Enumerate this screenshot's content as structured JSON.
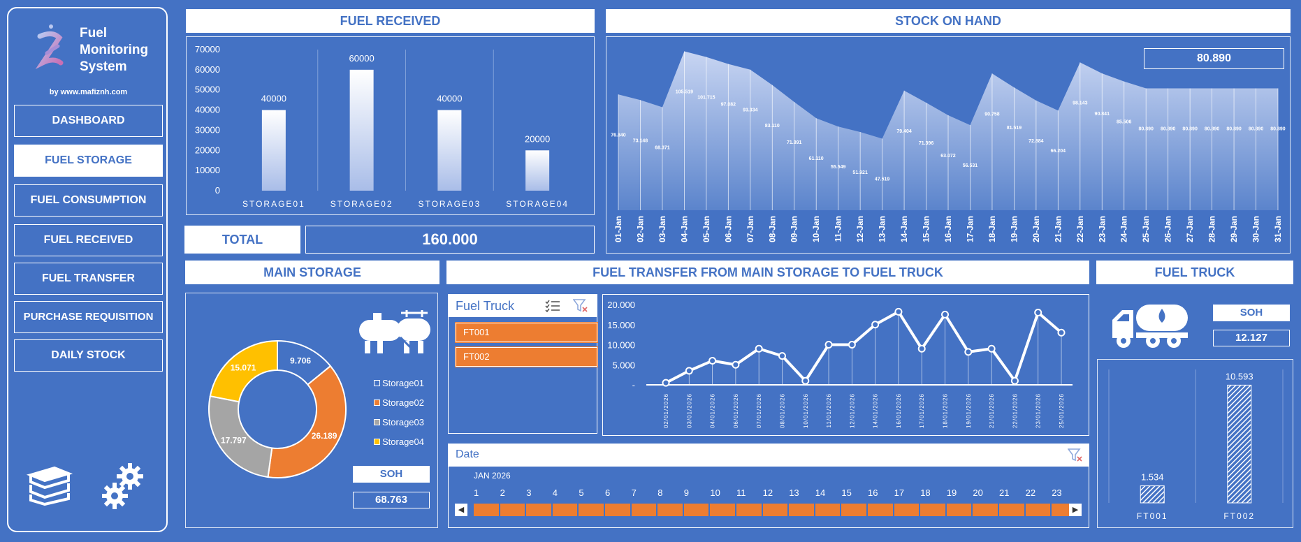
{
  "sidebar": {
    "app_title_line1": "Fuel",
    "app_title_line2": "Monitoring",
    "app_title_line3": "System",
    "byline": "by www.mafiznh.com",
    "items": [
      {
        "label": "DASHBOARD"
      },
      {
        "label": "FUEL STORAGE",
        "active": true
      },
      {
        "label": "FUEL CONSUMPTION"
      },
      {
        "label": "FUEL RECEIVED"
      },
      {
        "label": "FUEL TRANSFER"
      },
      {
        "label": "PURCHASE REQUISITION"
      },
      {
        "label": "DAILY STOCK"
      }
    ]
  },
  "fuel_received": {
    "title": "FUEL RECEIVED",
    "total_label": "TOTAL",
    "total_value": "160.000"
  },
  "stock_on_hand": {
    "title": "STOCK ON HAND",
    "current_value": "80.890"
  },
  "main_storage": {
    "title": "MAIN STORAGE",
    "soh_label": "SOH",
    "soh_value": "68.763"
  },
  "fuel_transfer": {
    "title": "FUEL TRANSFER FROM MAIN STORAGE TO FUEL TRUCK",
    "truck_slicer_title": "Fuel Truck",
    "truck_options": [
      "FT001",
      "FT002"
    ],
    "date_slicer_title": "Date",
    "date_month": "JAN 2026",
    "date_days": [
      "1",
      "2",
      "3",
      "4",
      "5",
      "6",
      "7",
      "8",
      "9",
      "10",
      "11",
      "12",
      "13",
      "14",
      "15",
      "16",
      "17",
      "18",
      "19",
      "20",
      "21",
      "22",
      "23"
    ]
  },
  "fuel_truck": {
    "title": "FUEL TRUCK",
    "soh_label": "SOH",
    "soh_value": "12.127"
  },
  "colors": {
    "background": "#4472C4",
    "orange": "#ED7D31",
    "yellow": "#FFC000",
    "gray": "#A5A5A5"
  },
  "chart_data": [
    {
      "id": "fuel_received",
      "type": "bar",
      "categories": [
        "STORAGE01",
        "STORAGE02",
        "STORAGE03",
        "STORAGE04"
      ],
      "values": [
        40000,
        60000,
        40000,
        20000
      ],
      "data_labels": [
        "40000",
        "60000",
        "40000",
        "20000"
      ],
      "ylim": [
        0,
        70000
      ],
      "yticks": [
        "0",
        "10000",
        "20000",
        "30000",
        "40000",
        "50000",
        "60000",
        "70000"
      ]
    },
    {
      "id": "stock_on_hand",
      "type": "area",
      "categories": [
        "01-Jan",
        "02-Jan",
        "03-Jan",
        "04-Jan",
        "05-Jan",
        "06-Jan",
        "07-Jan",
        "08-Jan",
        "09-Jan",
        "10-Jan",
        "11-Jan",
        "12-Jan",
        "13-Jan",
        "14-Jan",
        "15-Jan",
        "16-Jan",
        "17-Jan",
        "18-Jan",
        "19-Jan",
        "20-Jan",
        "21-Jan",
        "22-Jan",
        "23-Jan",
        "24-Jan",
        "25-Jan",
        "26-Jan",
        "27-Jan",
        "28-Jan",
        "29-Jan",
        "30-Jan",
        "31-Jan"
      ],
      "values": [
        76840,
        73148,
        68371,
        105519,
        101715,
        97082,
        93334,
        83110,
        71891,
        61110,
        55549,
        51921,
        47519,
        79404,
        71396,
        63072,
        56531,
        90758,
        81519,
        72884,
        66204,
        98143,
        90841,
        85506,
        80890,
        80890,
        80890,
        80890,
        80890,
        80890,
        80890
      ],
      "data_labels": [
        "76.840",
        "73.148",
        "68.371",
        "105.519",
        "101.715",
        "97.082",
        "93.334",
        "83.110",
        "71.891",
        "61.110",
        "55.549",
        "51.921",
        "47.519",
        "79.404",
        "71.396",
        "63.072",
        "56.531",
        "90.758",
        "81.519",
        "72.884",
        "66.204",
        "98.143",
        "90.841",
        "85.506",
        "80.890",
        "80.890",
        "80.890",
        "80.890",
        "80.890",
        "80.890",
        "80.890"
      ],
      "ylim": [
        0,
        115000
      ]
    },
    {
      "id": "main_storage",
      "type": "pie",
      "categories": [
        "Storage01",
        "Storage02",
        "Storage03",
        "Storage04"
      ],
      "values": [
        9706,
        26189,
        17797,
        15071
      ],
      "data_labels": [
        "9.706",
        "26.189",
        "17.797",
        "15.071"
      ],
      "colors": [
        "#4472C4",
        "#ED7D31",
        "#A5A5A5",
        "#FFC000"
      ]
    },
    {
      "id": "fuel_transfer",
      "type": "line",
      "categories": [
        "02/01/2026",
        "03/01/2026",
        "04/01/2026",
        "06/01/2026",
        "07/01/2026",
        "08/01/2026",
        "10/01/2026",
        "11/01/2026",
        "12/01/2026",
        "14/01/2026",
        "16/01/2026",
        "17/01/2026",
        "18/01/2026",
        "19/01/2026",
        "21/01/2026",
        "22/01/2026",
        "23/01/2026",
        "25/01/2026"
      ],
      "values": [
        500,
        3500,
        6000,
        5000,
        9000,
        7200,
        1000,
        10000,
        10000,
        15000,
        18200,
        9000,
        17500,
        8200,
        9000,
        1000,
        18000,
        13000
      ],
      "ylim": [
        0,
        20000
      ],
      "yticks": [
        "-",
        "5.000",
        "10.000",
        "15.000",
        "20.000"
      ]
    },
    {
      "id": "fuel_truck",
      "type": "bar",
      "categories": [
        "FT001",
        "FT002"
      ],
      "values": [
        1534,
        10593
      ],
      "data_labels": [
        "1.534",
        "10.593"
      ],
      "ylim": [
        0,
        12000
      ]
    }
  ]
}
